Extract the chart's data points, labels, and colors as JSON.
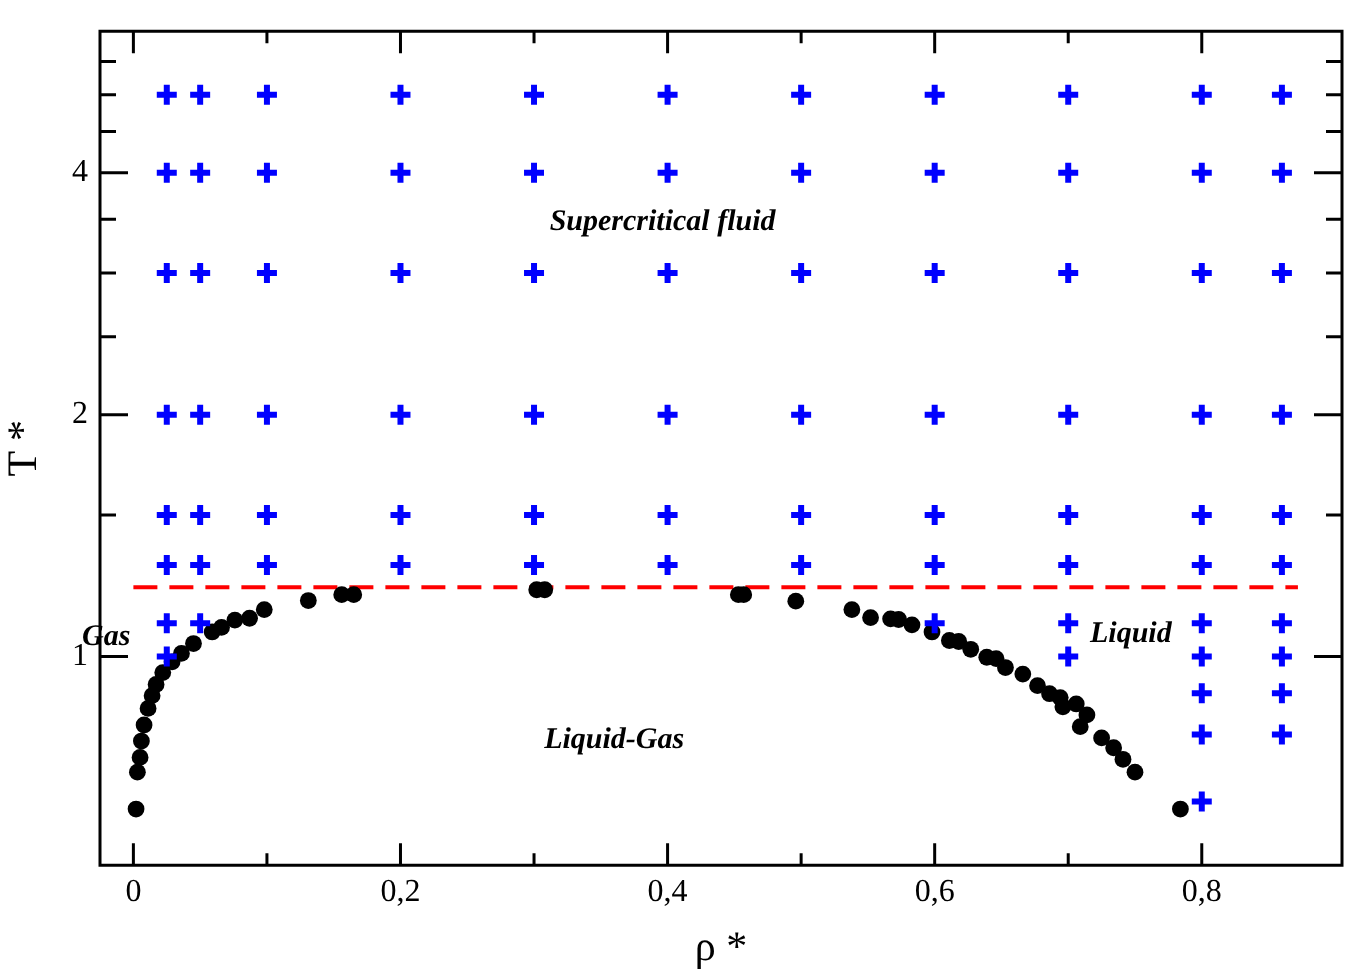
{
  "chart_data": {
    "type": "scatter",
    "xlabel": "ρ *",
    "ylabel": "T *",
    "log": "y",
    "grid": false,
    "legend": false,
    "xlim": [
      -0.025,
      0.905
    ],
    "ylim": [
      0.55,
      6
    ],
    "xticks": [
      {
        "value": 0,
        "label": "0"
      },
      {
        "value": 0.1,
        "label": null
      },
      {
        "value": 0.2,
        "label": "0,2"
      },
      {
        "value": 0.3,
        "label": null
      },
      {
        "value": 0.4,
        "label": "0,4"
      },
      {
        "value": 0.5,
        "label": null
      },
      {
        "value": 0.6,
        "label": "0,6"
      },
      {
        "value": 0.7,
        "label": null
      },
      {
        "value": 0.8,
        "label": "0,8"
      }
    ],
    "yticks": [
      1,
      {
        "value": 1.5,
        "label": null
      },
      2,
      {
        "value": 2.5,
        "label": null
      },
      {
        "value": 3,
        "label": null
      },
      {
        "value": 3.5,
        "label": null
      },
      4,
      {
        "value": 4.5,
        "label": null
      },
      {
        "value": 5,
        "label": null
      },
      {
        "value": 5.5,
        "label": null
      }
    ],
    "annotations": [
      "Supercritical fluid",
      "Gas",
      "Liquid",
      "Liquid-Gas"
    ],
    "series": [
      {
        "marker": "cross",
        "color": "#0000ff",
        "x": [
          0.025,
          0.05,
          0.1,
          0.2,
          0.3,
          0.4,
          0.5,
          0.6,
          0.7,
          0.8,
          0.86,
          0.025,
          0.05,
          0.1,
          0.2,
          0.3,
          0.4,
          0.5,
          0.6,
          0.7,
          0.8,
          0.86,
          0.025,
          0.05,
          0.1,
          0.2,
          0.3,
          0.4,
          0.5,
          0.6,
          0.7,
          0.8,
          0.86,
          0.025,
          0.05,
          0.1,
          0.2,
          0.3,
          0.4,
          0.5,
          0.6,
          0.7,
          0.8,
          0.86,
          0.025,
          0.05,
          0.1,
          0.2,
          0.3,
          0.4,
          0.5,
          0.6,
          0.7,
          0.8,
          0.86,
          0.025,
          0.05,
          0.1,
          0.2,
          0.3,
          0.4,
          0.5,
          0.6,
          0.7,
          0.8,
          0.86,
          0.025,
          0.05,
          0.6,
          0.7,
          0.8,
          0.86,
          0.025,
          0.7,
          0.8,
          0.86,
          0.8,
          0.86,
          0.8,
          0.86,
          0.8
        ],
        "values": [
          5,
          5,
          5,
          5,
          5,
          5,
          5,
          5,
          5,
          5,
          5,
          4,
          4,
          4,
          4,
          4,
          4,
          4,
          4,
          4,
          4,
          4,
          3,
          3,
          3,
          3,
          3,
          3,
          3,
          3,
          3,
          3,
          3,
          2,
          2,
          2,
          2,
          2,
          2,
          2,
          2,
          2,
          2,
          2,
          1.5,
          1.5,
          1.5,
          1.5,
          1.5,
          1.5,
          1.5,
          1.5,
          1.5,
          1.5,
          1.5,
          1.3,
          1.3,
          1.3,
          1.3,
          1.3,
          1.3,
          1.3,
          1.3,
          1.3,
          1.3,
          1.3,
          1.1,
          1.1,
          1.1,
          1.1,
          1.1,
          1.1,
          1,
          1,
          1,
          1,
          0.9,
          0.9,
          0.8,
          0.8,
          0.66
        ]
      },
      {
        "marker": "circle",
        "color": "#000000",
        "x": [
          0.002,
          0.003,
          0.005,
          0.006,
          0.008,
          0.011,
          0.014,
          0.017,
          0.022,
          0.029,
          0.036,
          0.045,
          0.059,
          0.066,
          0.076,
          0.087,
          0.098,
          0.131,
          0.156,
          0.165,
          0.302,
          0.308,
          0.453,
          0.457,
          0.496,
          0.538,
          0.552,
          0.567,
          0.573,
          0.583,
          0.598,
          0.611,
          0.618,
          0.627,
          0.639,
          0.646,
          0.653,
          0.666,
          0.677,
          0.686,
          0.694,
          0.696,
          0.706,
          0.714,
          0.709,
          0.725,
          0.734,
          0.741,
          0.75,
          0.784
        ],
        "values": [
          0.646,
          0.718,
          0.749,
          0.785,
          0.822,
          0.862,
          0.894,
          0.923,
          0.955,
          0.985,
          1.009,
          1.038,
          1.073,
          1.087,
          1.11,
          1.116,
          1.144,
          1.174,
          1.194,
          1.194,
          1.211,
          1.211,
          1.194,
          1.194,
          1.172,
          1.144,
          1.118,
          1.114,
          1.112,
          1.095,
          1.073,
          1.047,
          1.044,
          1.021,
          0.998,
          0.994,
          0.969,
          0.951,
          0.92,
          0.899,
          0.889,
          0.866,
          0.873,
          0.846,
          0.818,
          0.792,
          0.77,
          0.745,
          0.718,
          0.646
        ]
      },
      {
        "type": "line",
        "marker": "none",
        "line_style": "dashed",
        "color": "#ff0000",
        "x": [
          0,
          0.872
        ],
        "values": [
          1.22,
          1.22
        ]
      }
    ]
  }
}
